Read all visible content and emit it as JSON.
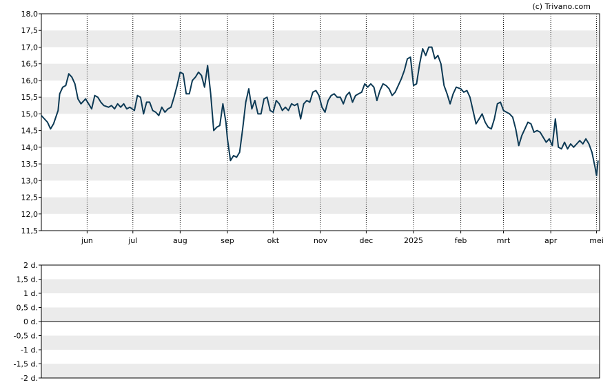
{
  "credit": "(c) Trivano.com",
  "colors": {
    "line": "#0d3a55",
    "band": "#ebebeb",
    "frame": "#000000",
    "grid": "#000000"
  },
  "chart_data": [
    {
      "type": "line",
      "title": "",
      "xlabel": "",
      "ylabel": "",
      "ylim": [
        11.5,
        18.0
      ],
      "y_ticks": [
        "11,5",
        "12,0",
        "12,5",
        "13,0",
        "13,5",
        "14,0",
        "14,5",
        "15,0",
        "15,5",
        "16,0",
        "16,5",
        "17,0",
        "17,5",
        "18,0"
      ],
      "y_tick_values": [
        11.5,
        12.0,
        12.5,
        13.0,
        13.5,
        14.0,
        14.5,
        15.0,
        15.5,
        16.0,
        16.5,
        17.0,
        17.5,
        18.0
      ],
      "x_ticks": [
        {
          "label": "jun",
          "date": "2024-06-01"
        },
        {
          "label": "jul",
          "date": "2024-07-01"
        },
        {
          "label": "aug",
          "date": "2024-08-01"
        },
        {
          "label": "sep",
          "date": "2024-09-01"
        },
        {
          "label": "okt",
          "date": "2024-10-01"
        },
        {
          "label": "nov",
          "date": "2024-11-01"
        },
        {
          "label": "dec",
          "date": "2024-12-01"
        },
        {
          "label": "2025",
          "date": "2025-01-01"
        },
        {
          "label": "feb",
          "date": "2025-02-01"
        },
        {
          "label": "mrt",
          "date": "2025-03-01"
        },
        {
          "label": "apr",
          "date": "2025-04-01"
        },
        {
          "label": "mei",
          "date": "2025-05-01"
        }
      ],
      "x_range": [
        "2024-05-02",
        "2025-05-03"
      ],
      "grid": "vertical dotted at month starts, alternating horizontal bands",
      "series": [
        {
          "points": [
            [
              "2024-05-02",
              14.95
            ],
            [
              "2024-05-06",
              14.75
            ],
            [
              "2024-05-08",
              14.55
            ],
            [
              "2024-05-10",
              14.7
            ],
            [
              "2024-05-13",
              15.1
            ],
            [
              "2024-05-14",
              15.6
            ],
            [
              "2024-05-16",
              15.8
            ],
            [
              "2024-05-18",
              15.85
            ],
            [
              "2024-05-20",
              16.2
            ],
            [
              "2024-05-22",
              16.1
            ],
            [
              "2024-05-24",
              15.9
            ],
            [
              "2024-05-26",
              15.45
            ],
            [
              "2024-05-28",
              15.3
            ],
            [
              "2024-05-31",
              15.45
            ],
            [
              "2024-06-02",
              15.3
            ],
            [
              "2024-06-04",
              15.15
            ],
            [
              "2024-06-06",
              15.55
            ],
            [
              "2024-06-08",
              15.5
            ],
            [
              "2024-06-10",
              15.35
            ],
            [
              "2024-06-12",
              15.25
            ],
            [
              "2024-06-15",
              15.2
            ],
            [
              "2024-06-17",
              15.25
            ],
            [
              "2024-06-19",
              15.15
            ],
            [
              "2024-06-21",
              15.3
            ],
            [
              "2024-06-23",
              15.2
            ],
            [
              "2024-06-25",
              15.3
            ],
            [
              "2024-06-27",
              15.15
            ],
            [
              "2024-06-29",
              15.2
            ],
            [
              "2024-07-02",
              15.1
            ],
            [
              "2024-07-04",
              15.55
            ],
            [
              "2024-07-06",
              15.5
            ],
            [
              "2024-07-08",
              15.0
            ],
            [
              "2024-07-10",
              15.35
            ],
            [
              "2024-07-12",
              15.35
            ],
            [
              "2024-07-14",
              15.1
            ],
            [
              "2024-07-16",
              15.05
            ],
            [
              "2024-07-18",
              14.95
            ],
            [
              "2024-07-20",
              15.2
            ],
            [
              "2024-07-22",
              15.05
            ],
            [
              "2024-07-24",
              15.15
            ],
            [
              "2024-07-26",
              15.2
            ],
            [
              "2024-07-28",
              15.5
            ],
            [
              "2024-07-30",
              15.85
            ],
            [
              "2024-08-01",
              16.25
            ],
            [
              "2024-08-03",
              16.2
            ],
            [
              "2024-08-05",
              15.6
            ],
            [
              "2024-08-07",
              15.6
            ],
            [
              "2024-08-09",
              16.0
            ],
            [
              "2024-08-11",
              16.1
            ],
            [
              "2024-08-13",
              16.25
            ],
            [
              "2024-08-15",
              16.15
            ],
            [
              "2024-08-17",
              15.8
            ],
            [
              "2024-08-19",
              16.45
            ],
            [
              "2024-08-21",
              15.6
            ],
            [
              "2024-08-23",
              14.5
            ],
            [
              "2024-08-25",
              14.6
            ],
            [
              "2024-08-27",
              14.65
            ],
            [
              "2024-08-29",
              15.3
            ],
            [
              "2024-08-31",
              14.75
            ],
            [
              "2024-09-01",
              14.25
            ],
            [
              "2024-09-03",
              13.6
            ],
            [
              "2024-09-05",
              13.75
            ],
            [
              "2024-09-07",
              13.7
            ],
            [
              "2024-09-09",
              13.85
            ],
            [
              "2024-09-11",
              14.55
            ],
            [
              "2024-09-13",
              15.35
            ],
            [
              "2024-09-15",
              15.75
            ],
            [
              "2024-09-17",
              15.15
            ],
            [
              "2024-09-19",
              15.4
            ],
            [
              "2024-09-21",
              15.0
            ],
            [
              "2024-09-23",
              15.0
            ],
            [
              "2024-09-25",
              15.45
            ],
            [
              "2024-09-27",
              15.5
            ],
            [
              "2024-09-29",
              15.1
            ],
            [
              "2024-10-01",
              15.05
            ],
            [
              "2024-10-03",
              15.4
            ],
            [
              "2024-10-05",
              15.3
            ],
            [
              "2024-10-07",
              15.1
            ],
            [
              "2024-10-09",
              15.2
            ],
            [
              "2024-10-11",
              15.1
            ],
            [
              "2024-10-13",
              15.3
            ],
            [
              "2024-10-15",
              15.25
            ],
            [
              "2024-10-17",
              15.3
            ],
            [
              "2024-10-19",
              14.85
            ],
            [
              "2024-10-21",
              15.3
            ],
            [
              "2024-10-23",
              15.4
            ],
            [
              "2024-10-25",
              15.35
            ],
            [
              "2024-10-27",
              15.65
            ],
            [
              "2024-10-29",
              15.7
            ],
            [
              "2024-10-31",
              15.55
            ],
            [
              "2024-11-02",
              15.2
            ],
            [
              "2024-11-04",
              15.05
            ],
            [
              "2024-11-06",
              15.4
            ],
            [
              "2024-11-08",
              15.55
            ],
            [
              "2024-11-10",
              15.6
            ],
            [
              "2024-11-12",
              15.5
            ],
            [
              "2024-11-14",
              15.5
            ],
            [
              "2024-11-16",
              15.3
            ],
            [
              "2024-11-18",
              15.55
            ],
            [
              "2024-11-20",
              15.65
            ],
            [
              "2024-11-22",
              15.35
            ],
            [
              "2024-11-24",
              15.55
            ],
            [
              "2024-11-26",
              15.6
            ],
            [
              "2024-11-28",
              15.65
            ],
            [
              "2024-11-30",
              15.9
            ],
            [
              "2024-12-02",
              15.8
            ],
            [
              "2024-12-04",
              15.9
            ],
            [
              "2024-12-06",
              15.8
            ],
            [
              "2024-12-08",
              15.4
            ],
            [
              "2024-12-10",
              15.7
            ],
            [
              "2024-12-12",
              15.9
            ],
            [
              "2024-12-14",
              15.85
            ],
            [
              "2024-12-16",
              15.75
            ],
            [
              "2024-12-18",
              15.55
            ],
            [
              "2024-12-20",
              15.65
            ],
            [
              "2024-12-22",
              15.85
            ],
            [
              "2024-12-24",
              16.05
            ],
            [
              "2024-12-26",
              16.3
            ],
            [
              "2024-12-28",
              16.65
            ],
            [
              "2024-12-30",
              16.7
            ],
            [
              "2025-01-01",
              15.85
            ],
            [
              "2025-01-03",
              15.9
            ],
            [
              "2025-01-05",
              16.5
            ],
            [
              "2025-01-07",
              16.95
            ],
            [
              "2025-01-09",
              16.75
            ],
            [
              "2025-01-11",
              17.0
            ],
            [
              "2025-01-13",
              17.0
            ],
            [
              "2025-01-15",
              16.65
            ],
            [
              "2025-01-17",
              16.75
            ],
            [
              "2025-01-19",
              16.5
            ],
            [
              "2025-01-21",
              15.85
            ],
            [
              "2025-01-23",
              15.6
            ],
            [
              "2025-01-25",
              15.3
            ],
            [
              "2025-01-27",
              15.6
            ],
            [
              "2025-01-29",
              15.8
            ],
            [
              "2025-02-01",
              15.75
            ],
            [
              "2025-02-03",
              15.65
            ],
            [
              "2025-02-05",
              15.7
            ],
            [
              "2025-02-07",
              15.5
            ],
            [
              "2025-02-09",
              15.1
            ],
            [
              "2025-02-11",
              14.7
            ],
            [
              "2025-02-13",
              14.85
            ],
            [
              "2025-02-15",
              15.0
            ],
            [
              "2025-02-17",
              14.75
            ],
            [
              "2025-02-19",
              14.6
            ],
            [
              "2025-02-21",
              14.55
            ],
            [
              "2025-02-23",
              14.85
            ],
            [
              "2025-02-25",
              15.3
            ],
            [
              "2025-02-27",
              15.35
            ],
            [
              "2025-03-01",
              15.1
            ],
            [
              "2025-03-03",
              15.05
            ],
            [
              "2025-03-05",
              15.0
            ],
            [
              "2025-03-07",
              14.9
            ],
            [
              "2025-03-09",
              14.55
            ],
            [
              "2025-03-11",
              14.05
            ],
            [
              "2025-03-13",
              14.35
            ],
            [
              "2025-03-15",
              14.55
            ],
            [
              "2025-03-17",
              14.75
            ],
            [
              "2025-03-19",
              14.7
            ],
            [
              "2025-03-21",
              14.45
            ],
            [
              "2025-03-23",
              14.5
            ],
            [
              "2025-03-25",
              14.45
            ],
            [
              "2025-03-27",
              14.3
            ],
            [
              "2025-03-29",
              14.15
            ],
            [
              "2025-03-31",
              14.25
            ],
            [
              "2025-04-02",
              14.05
            ],
            [
              "2025-04-04",
              14.85
            ],
            [
              "2025-04-06",
              14.0
            ],
            [
              "2025-04-08",
              13.95
            ],
            [
              "2025-04-10",
              14.15
            ],
            [
              "2025-04-12",
              13.95
            ],
            [
              "2025-04-14",
              14.1
            ],
            [
              "2025-04-16",
              14.0
            ],
            [
              "2025-04-18",
              14.1
            ],
            [
              "2025-04-20",
              14.2
            ],
            [
              "2025-04-22",
              14.1
            ],
            [
              "2025-04-24",
              14.25
            ],
            [
              "2025-04-26",
              14.1
            ],
            [
              "2025-04-28",
              13.85
            ],
            [
              "2025-04-30",
              13.4
            ],
            [
              "2025-05-01",
              13.15
            ],
            [
              "2025-05-02",
              13.6
            ]
          ]
        }
      ]
    },
    {
      "type": "line",
      "title": "",
      "xlabel": "",
      "ylabel": "",
      "ylim": [
        -2,
        2
      ],
      "y_ticks": [
        "2 d.",
        "1,5 d.",
        "1 d.",
        "0,5 d.",
        "0 d.",
        "-0,5 d.",
        "-1 d.",
        "-1,5 d.",
        "-2 d."
      ],
      "y_tick_values": [
        2,
        1.5,
        1,
        0.5,
        0,
        -0.5,
        -1,
        -1.5,
        -2
      ],
      "baseline": 0,
      "grid": "alternating horizontal bands",
      "series": []
    }
  ]
}
